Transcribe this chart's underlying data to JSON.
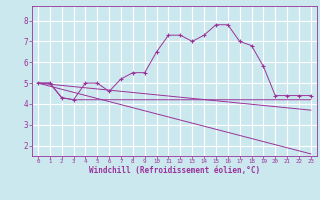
{
  "background_color": "#cce8ef",
  "grid_color": "#ffffff",
  "line_color": "#993399",
  "xlabel": "Windchill (Refroidissement éolien,°C)",
  "xlabel_color": "#993399",
  "tick_color": "#993399",
  "spine_color": "#993399",
  "xlim": [
    -0.5,
    23.5
  ],
  "ylim": [
    1.5,
    8.7
  ],
  "yticks": [
    2,
    3,
    4,
    5,
    6,
    7,
    8
  ],
  "xticks": [
    0,
    1,
    2,
    3,
    4,
    5,
    6,
    7,
    8,
    9,
    10,
    11,
    12,
    13,
    14,
    15,
    16,
    17,
    18,
    19,
    20,
    21,
    22,
    23
  ],
  "lines": [
    {
      "x": [
        0,
        1,
        2,
        3,
        4,
        5,
        6,
        7,
        8,
        9,
        10,
        11,
        12,
        13,
        14,
        15,
        16,
        17,
        18,
        19,
        20,
        21,
        22,
        23
      ],
      "y": [
        5.0,
        5.0,
        4.3,
        4.2,
        5.0,
        5.0,
        4.6,
        5.2,
        5.5,
        5.5,
        6.5,
        7.3,
        7.3,
        7.0,
        7.3,
        7.8,
        7.8,
        7.0,
        6.8,
        5.8,
        4.4,
        4.4,
        4.4,
        4.4
      ],
      "has_marker": true
    },
    {
      "x": [
        0,
        1,
        2,
        3,
        4,
        5,
        6,
        7,
        8,
        9,
        10,
        11,
        12,
        13,
        14,
        15,
        16,
        17,
        18,
        19,
        20,
        21,
        22,
        23
      ],
      "y": [
        5.0,
        5.0,
        4.3,
        4.2,
        4.2,
        4.2,
        4.2,
        4.2,
        4.2,
        4.2,
        4.2,
        4.2,
        4.2,
        4.2,
        4.2,
        4.2,
        4.2,
        4.2,
        4.2,
        4.2,
        4.2,
        4.2,
        4.2,
        4.2
      ],
      "has_marker": false
    },
    {
      "x": [
        0,
        23
      ],
      "y": [
        5.0,
        1.6
      ],
      "has_marker": false
    },
    {
      "x": [
        0,
        23
      ],
      "y": [
        5.0,
        3.7
      ],
      "has_marker": false
    }
  ]
}
